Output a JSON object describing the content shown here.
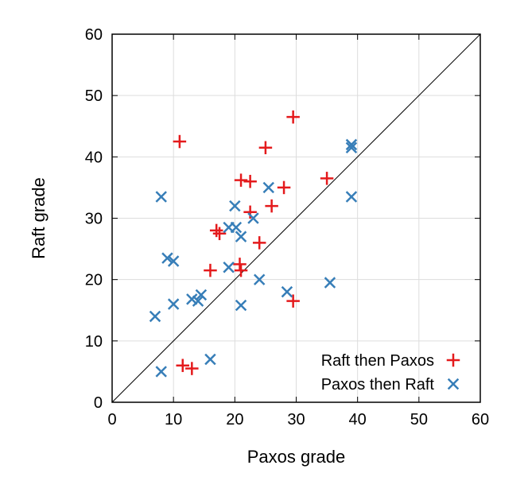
{
  "chart_data": {
    "type": "scatter",
    "xlabel": "Paxos grade",
    "ylabel": "Raft grade",
    "xlim": [
      0,
      60
    ],
    "ylim": [
      0,
      60
    ],
    "xticks": [
      "0",
      "10",
      "20",
      "30",
      "40",
      "50",
      "60"
    ],
    "yticks": [
      "0",
      "10",
      "20",
      "30",
      "40",
      "50",
      "60"
    ],
    "grid": true,
    "diagonal_line": true,
    "legend_position": "bottom-right",
    "series": [
      {
        "name": "Raft then Paxos",
        "marker": "plus",
        "color": "#e41a1c",
        "points": [
          [
            11,
            42.5
          ],
          [
            29.5,
            46.5
          ],
          [
            25,
            41.5
          ],
          [
            21,
            36.2
          ],
          [
            22.5,
            36
          ],
          [
            28,
            35
          ],
          [
            35,
            36.5
          ],
          [
            26,
            32
          ],
          [
            22.5,
            31
          ],
          [
            17,
            28
          ],
          [
            17.5,
            27.5
          ],
          [
            24,
            26
          ],
          [
            16,
            21.5
          ],
          [
            20.8,
            22.5
          ],
          [
            21,
            21.5
          ],
          [
            29.5,
            16.5
          ],
          [
            11.5,
            6
          ],
          [
            13,
            5.5
          ]
        ]
      },
      {
        "name": "Paxos then Raft",
        "marker": "cross",
        "color": "#377eb8",
        "points": [
          [
            39,
            42
          ],
          [
            39,
            41.5
          ],
          [
            8,
            33.5
          ],
          [
            25.5,
            35
          ],
          [
            20,
            32
          ],
          [
            23,
            30
          ],
          [
            19,
            28.5
          ],
          [
            20.2,
            28.5
          ],
          [
            21,
            27
          ],
          [
            39,
            33.5
          ],
          [
            9,
            23.5
          ],
          [
            10,
            23
          ],
          [
            19,
            22
          ],
          [
            24,
            20
          ],
          [
            35.5,
            19.5
          ],
          [
            28.5,
            18
          ],
          [
            14.5,
            17.5
          ],
          [
            13,
            16.8
          ],
          [
            14,
            16.5
          ],
          [
            10,
            16
          ],
          [
            21,
            15.8
          ],
          [
            7,
            14
          ],
          [
            16,
            7
          ],
          [
            8,
            5
          ]
        ]
      }
    ]
  }
}
